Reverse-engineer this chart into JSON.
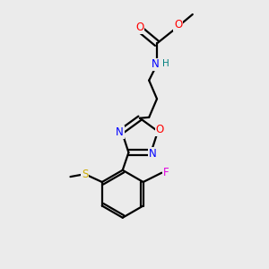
{
  "bg_color": "#ebebeb",
  "atom_colors": {
    "C": "#000000",
    "N": "#0000ff",
    "O": "#ff0000",
    "F": "#e000e0",
    "S": "#ccaa00",
    "H": "#008080"
  },
  "bond_color": "#000000",
  "bond_width": 1.6
}
